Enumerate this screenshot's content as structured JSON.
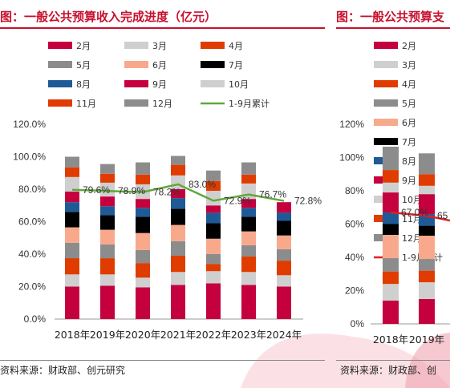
{
  "header": {
    "title_left": "图：一般公共预算收入完成进度（亿元）",
    "title_right": "图：一般公共预算支"
  },
  "footer": {
    "source_left": "资料来源：财政部、创元研究",
    "source_right": "资料来源：财政部、创"
  },
  "chart_data": [
    {
      "type": "bar",
      "stacked": true,
      "title": "图：一般公共预算收入完成进度（亿元）",
      "categories": [
        "2018年",
        "2019年",
        "2020年",
        "2021年",
        "2022年",
        "2023年",
        "2024年"
      ],
      "ylim": [
        0,
        1.2
      ],
      "yticks": [
        "0.0%",
        "20.0%",
        "40.0%",
        "60.0%",
        "80.0%",
        "100.0%",
        "120.0%"
      ],
      "legend_placement": "top",
      "series": [
        {
          "name": "2月",
          "color": "#c5003e",
          "values": [
            0.2,
            0.205,
            0.195,
            0.21,
            0.22,
            0.21,
            0.2
          ]
        },
        {
          "name": "3月",
          "color": "#cfcfcf",
          "values": [
            0.075,
            0.07,
            0.06,
            0.08,
            0.075,
            0.08,
            0.07
          ]
        },
        {
          "name": "4月",
          "color": "#e03c00",
          "values": [
            0.1,
            0.1,
            0.09,
            0.1,
            0.045,
            0.095,
            0.09
          ]
        },
        {
          "name": "5月",
          "color": "#8c8c8c",
          "values": [
            0.095,
            0.085,
            0.08,
            0.09,
            0.06,
            0.07,
            0.07
          ]
        },
        {
          "name": "6月",
          "color": "#f8a98c",
          "values": [
            0.095,
            0.09,
            0.105,
            0.1,
            0.095,
            0.085,
            0.085
          ]
        },
        {
          "name": "7月",
          "color": "#000000",
          "values": [
            0.095,
            0.09,
            0.1,
            0.1,
            0.095,
            0.09,
            0.09
          ]
        },
        {
          "name": "8月",
          "color": "#1f5a96",
          "values": [
            0.06,
            0.055,
            0.055,
            0.065,
            0.065,
            0.055,
            0.05
          ]
        },
        {
          "name": "9月",
          "color": "#c5003e",
          "values": [
            0.065,
            0.06,
            0.055,
            0.055,
            0.045,
            0.055,
            0.065
          ]
        },
        {
          "name": "10月",
          "color": "#cfcfcf",
          "values": [
            0.09,
            0.085,
            0.09,
            0.085,
            0.09,
            0.095,
            0
          ]
        },
        {
          "name": "11月",
          "color": "#e03c00",
          "values": [
            0.06,
            0.055,
            0.06,
            0.065,
            0.06,
            0.055,
            0
          ]
        },
        {
          "name": "12月",
          "color": "#8c8c8c",
          "values": [
            0.065,
            0.06,
            0.075,
            0.055,
            0.065,
            0.075,
            0
          ]
        }
      ],
      "line_series": {
        "name": "1-9月累计",
        "color": "#5fa83a",
        "values": [
          0.796,
          0.789,
          0.782,
          0.83,
          0.729,
          0.767,
          0.728
        ],
        "labels": [
          "79.6%",
          "78.9%",
          "78.2%",
          "83.0%",
          "72.9%",
          "76.7%",
          "72.8%"
        ]
      }
    },
    {
      "type": "bar",
      "stacked": true,
      "title": "图：一般公共预算支",
      "categories": [
        "2018年",
        "2019年"
      ],
      "ylim": [
        0,
        1.2
      ],
      "yticks": [
        "0%",
        "20%",
        "40%",
        "60%",
        "80%",
        "100%",
        "120%"
      ],
      "legend_placement": "top",
      "series": [
        {
          "name": "2月",
          "color": "#c5003e",
          "values": [
            0.14,
            0.15
          ]
        },
        {
          "name": "3月",
          "color": "#cfcfcf",
          "values": [
            0.1,
            0.1
          ]
        },
        {
          "name": "4月",
          "color": "#e03c00",
          "values": [
            0.075,
            0.07
          ]
        },
        {
          "name": "5月",
          "color": "#8c8c8c",
          "values": [
            0.08,
            0.07
          ]
        },
        {
          "name": "6月",
          "color": "#f8a98c",
          "values": [
            0.14,
            0.14
          ]
        },
        {
          "name": "7月",
          "color": "#000000",
          "values": [
            0.065,
            0.06
          ]
        },
        {
          "name": "8月",
          "color": "#1f5a96",
          "values": [
            0.07,
            0.07
          ]
        },
        {
          "name": "9月",
          "color": "#c5003e",
          "values": [
            0.12,
            0.12
          ]
        },
        {
          "name": "10月",
          "color": "#cfcfcf",
          "values": [
            0.06,
            0.05
          ]
        },
        {
          "name": "11月",
          "color": "#e03c00",
          "values": [
            0.075,
            0.07
          ]
        },
        {
          "name": "12月",
          "color": "#8c8c8c",
          "values": [
            0.14,
            0.125
          ]
        }
      ],
      "line_series": {
        "name": "1-9月累计",
        "color": "#e02020",
        "values": [
          0.67,
          0.65
        ],
        "labels": [
          "67.0%",
          "65"
        ]
      }
    }
  ]
}
